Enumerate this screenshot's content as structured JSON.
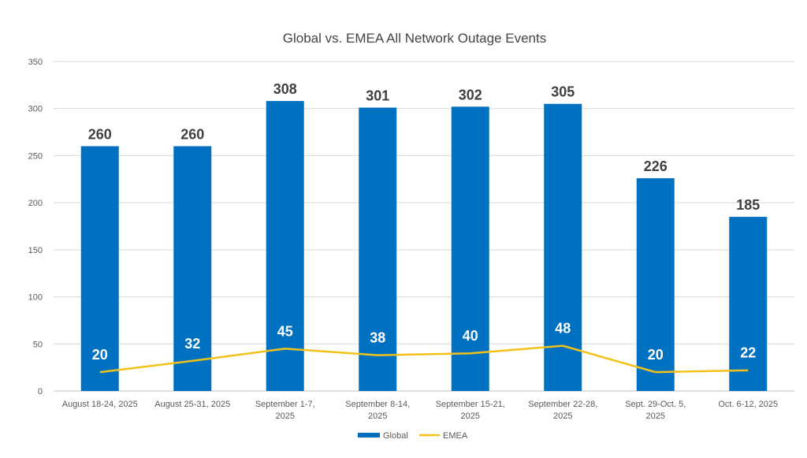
{
  "chart_data": {
    "type": "bar",
    "title": "Global vs. EMEA All Network Outage Events",
    "xlabel": "",
    "ylabel": "",
    "ylim": [
      0,
      350
    ],
    "yticks": [
      0,
      50,
      100,
      150,
      200,
      250,
      300,
      350
    ],
    "grid": true,
    "legend_position": "bottom",
    "categories": [
      [
        "August 18-24, 2025"
      ],
      [
        "August 25-31, 2025"
      ],
      [
        "September 1-7,",
        "2025"
      ],
      [
        "September 8-14,",
        "2025"
      ],
      [
        "September 15-21,",
        "2025"
      ],
      [
        "September 22-28,",
        "2025"
      ],
      [
        "Sept. 29-Oct. 5,",
        "2025"
      ],
      [
        "Oct. 6-12, 2025"
      ]
    ],
    "series": [
      {
        "name": "Global",
        "type": "bar",
        "color": "#0070c0",
        "values": [
          260,
          260,
          308,
          301,
          302,
          305,
          226,
          185
        ]
      },
      {
        "name": "EMEA",
        "type": "line",
        "color": "#f2c21b",
        "values": [
          20,
          32,
          45,
          38,
          40,
          48,
          20,
          22
        ]
      }
    ]
  }
}
